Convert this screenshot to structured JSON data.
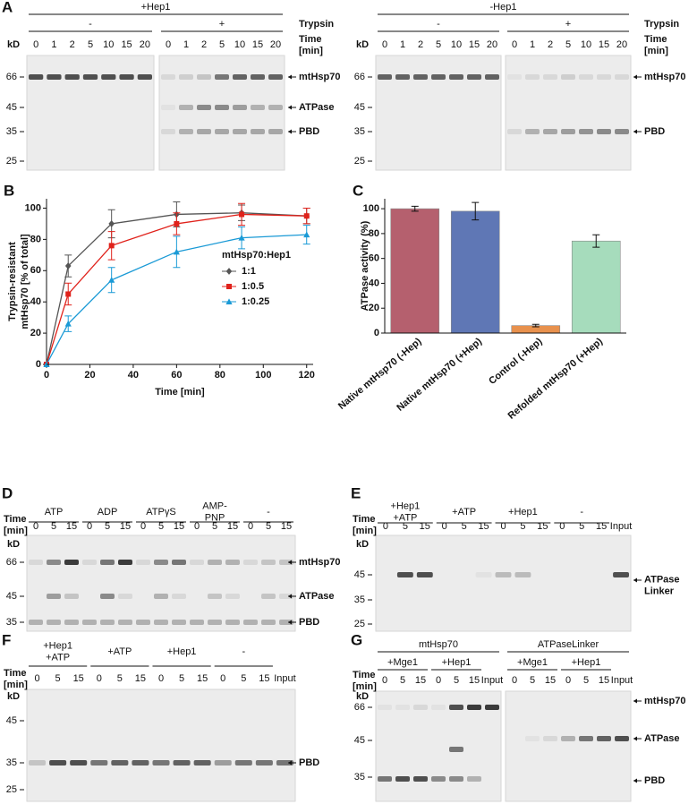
{
  "gels": [
    {
      "panel": "A",
      "header_rows": [
        [
          "+Hep1"
        ],
        [
          "-",
          "+"
        ]
      ],
      "side_label": "Trypsin",
      "time_label": [
        "Time",
        "[min]"
      ],
      "kd": "kD",
      "lanes": [
        0,
        1,
        2,
        5,
        10,
        15,
        20,
        0,
        1,
        2,
        5,
        10,
        15,
        20
      ],
      "markers": [
        66,
        45,
        35,
        25
      ],
      "bands": [
        "mtHsp70",
        "ATPase",
        "PBD"
      ]
    },
    {
      "header_rows": [
        [
          "-Hep1"
        ],
        [
          "-",
          "+"
        ]
      ],
      "side_label": "Trypsin",
      "time_label": [
        "Time",
        "[min]"
      ],
      "kd": "kD",
      "lanes": [
        0,
        1,
        2,
        5,
        10,
        15,
        20,
        0,
        1,
        2,
        5,
        10,
        15,
        20
      ],
      "markers": [
        66,
        45,
        35,
        25
      ],
      "bands": [
        "mtHsp70",
        "PBD"
      ]
    },
    {
      "panel": "D",
      "header_rows": [
        [
          "ATP",
          "ADP",
          "ATPγS",
          [
            "AMP-",
            "PNP"
          ],
          "-"
        ]
      ],
      "time_label": [
        "Time",
        "[min]"
      ],
      "kd": "kD",
      "lanes": [
        0,
        5,
        15,
        0,
        5,
        15,
        0,
        5,
        15,
        0,
        5,
        15,
        0,
        5,
        15
      ],
      "markers": [
        66,
        45,
        35
      ],
      "bands": [
        "mtHsp70",
        "ATPase",
        "PBD"
      ]
    },
    {
      "panel": "E",
      "header_rows": [
        [
          [
            "+Hep1",
            "+ATP"
          ],
          "+ATP",
          "+Hep1",
          "-"
        ]
      ],
      "time_label": [
        "Time",
        "[min]"
      ],
      "kd": "kD",
      "lanes": [
        0,
        5,
        15,
        0,
        5,
        15,
        0,
        5,
        15,
        0,
        5,
        15,
        "Input"
      ],
      "markers": [
        45,
        35,
        25
      ],
      "bands": [
        [
          "ATPase",
          "Linker"
        ]
      ]
    },
    {
      "panel": "F",
      "header_rows": [
        [
          [
            "+Hep1",
            "+ATP"
          ],
          "+ATP",
          "+Hep1",
          "-"
        ]
      ],
      "time_label": [
        "Time",
        "[min]"
      ],
      "kd": "kD",
      "lanes": [
        0,
        5,
        15,
        0,
        5,
        15,
        0,
        5,
        15,
        0,
        5,
        15,
        "Input"
      ],
      "markers": [
        45,
        35,
        25
      ],
      "bands": [
        "PBD"
      ]
    },
    {
      "panel": "G",
      "header_rows": [
        [
          "mtHsp70",
          "ATPaseLinker"
        ],
        [
          "+Mge1",
          "+Hep1",
          "+Mge1",
          "+Hep1"
        ]
      ],
      "time_label": [
        "Time",
        "[min]"
      ],
      "kd": "kD",
      "lanes": [
        0,
        5,
        15,
        0,
        5,
        15,
        "Input",
        0,
        5,
        15,
        0,
        5,
        15,
        "Input"
      ],
      "markers": [
        66,
        45,
        35
      ],
      "bands": [
        "mtHsp70",
        "ATPase",
        "PBD"
      ]
    }
  ],
  "chart_data": [
    {
      "type": "line",
      "panel": "B",
      "ylabel": [
        "Trypsin-resistant",
        "mtHsp70 [% of total]"
      ],
      "xlabel": "Time [min]",
      "x": [
        0,
        10,
        30,
        60,
        90,
        120
      ],
      "xlim": [
        0,
        123
      ],
      "xticks": [
        0,
        20,
        40,
        60,
        80,
        100,
        120
      ],
      "ylim": [
        0,
        106
      ],
      "yticks": [
        0,
        20,
        40,
        60,
        80,
        100
      ],
      "legend_title": "mtHsp70:Hep1",
      "series": [
        {
          "name": "1:1",
          "color": "#555555",
          "marker": "D",
          "values": [
            0,
            63,
            90,
            96,
            97,
            95
          ],
          "errors": [
            0,
            7,
            9,
            8,
            5,
            5
          ]
        },
        {
          "name": "1:0.5",
          "color": "#e0221b",
          "marker": "s",
          "values": [
            0,
            45,
            76,
            90,
            96,
            95
          ],
          "errors": [
            0,
            7,
            9,
            7,
            7,
            5
          ]
        },
        {
          "name": "1:0.25",
          "color": "#1a9ad6",
          "marker": "^",
          "values": [
            0,
            26,
            54,
            72,
            81,
            83
          ],
          "errors": [
            0,
            5,
            8,
            10,
            7,
            6
          ]
        }
      ]
    },
    {
      "type": "bar",
      "panel": "C",
      "ylabel": "ATPase activity (%)",
      "categories": [
        "Native mtHsp70 (-Hep)",
        "Native mtHsp70 (+Hep)",
        "Control (-Hep)",
        "Refolded mtHsp70 (+Hep)"
      ],
      "values": [
        100,
        98,
        6,
        74
      ],
      "errors": [
        2,
        7,
        1,
        5
      ],
      "colors": [
        "#b5606e",
        "#5f77b5",
        "#e8914d",
        "#a6dcbc"
      ],
      "ylim": [
        0,
        108
      ],
      "yticks": [
        0,
        20,
        40,
        60,
        80,
        100
      ]
    }
  ]
}
